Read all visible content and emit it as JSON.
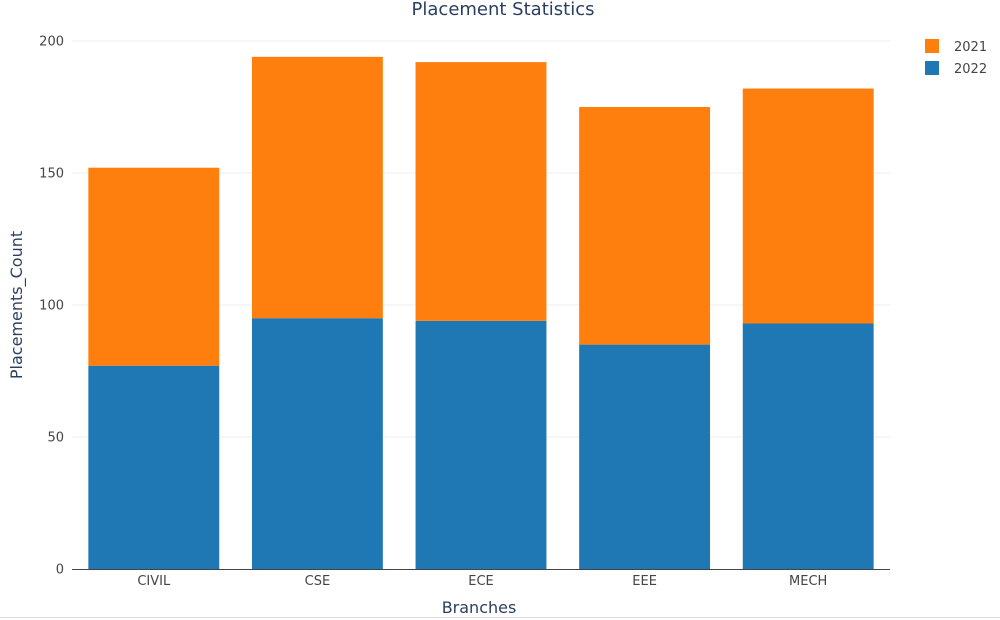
{
  "chart_data": {
    "type": "bar",
    "stacked": true,
    "title": "Placement Statistics",
    "xlabel": "Branches",
    "ylabel": "Placements_Count",
    "categories": [
      "CIVIL",
      "CSE",
      "ECE",
      "EEE",
      "MECH"
    ],
    "series": [
      {
        "name": "2022",
        "values": [
          77,
          95,
          94,
          85,
          93
        ],
        "color": "#1f77b4"
      },
      {
        "name": "2021",
        "values": [
          75,
          99,
          98,
          90,
          89
        ],
        "color": "#ff7f0e"
      }
    ],
    "legend_order": [
      "2021",
      "2022"
    ],
    "ylim": [
      0,
      200
    ],
    "yticks": [
      0,
      50,
      100,
      150,
      200
    ],
    "grid": true,
    "legend_position": "top-right"
  }
}
